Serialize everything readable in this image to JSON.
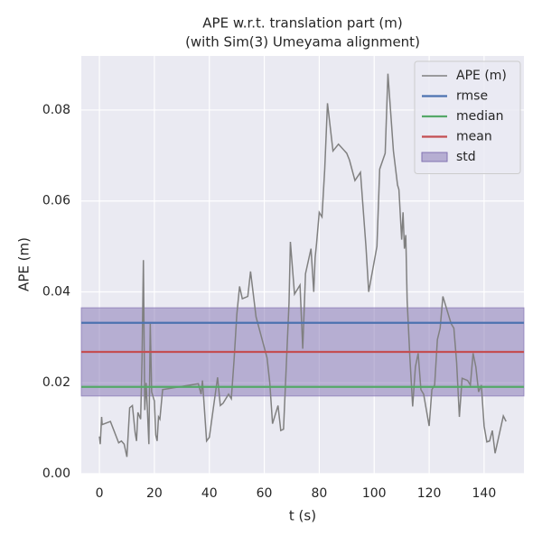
{
  "chart_data": {
    "type": "line",
    "title": "APE w.r.t. translation part (m)",
    "subtitle": "(with Sim(3) Umeyama alignment)",
    "xlabel": "t (s)",
    "ylabel": "APE (m)",
    "xlim": [
      -6.6,
      154.5
    ],
    "ylim": [
      0,
      0.0919
    ],
    "xticks": [
      0,
      20,
      40,
      60,
      80,
      100,
      120,
      140
    ],
    "yticks": [
      {
        "value": 0,
        "label": "0.00"
      },
      {
        "value": 0.02,
        "label": "0.02"
      },
      {
        "value": 0.04,
        "label": "0.04"
      },
      {
        "value": 0.06,
        "label": "0.06"
      },
      {
        "value": 0.08,
        "label": "0.08"
      }
    ],
    "grid": true,
    "legend": "upper right",
    "x": [
      0,
      0.3,
      0.8,
      1,
      4,
      7,
      8,
      9,
      10,
      11,
      12,
      13,
      13.5,
      14,
      15,
      15.5,
      16,
      16.5,
      17,
      17.5,
      18,
      18.5,
      19,
      20,
      20.5,
      21,
      21.5,
      22,
      23,
      36,
      37,
      37.5,
      39,
      40,
      43,
      44,
      45,
      47,
      48,
      49,
      50,
      51,
      52,
      54,
      55,
      57,
      61,
      62,
      63,
      65,
      66,
      67,
      69,
      69.5,
      71,
      73,
      74,
      75,
      77,
      78,
      78.5,
      79,
      80,
      81,
      82,
      83,
      85,
      87,
      90,
      91,
      93,
      95,
      97,
      98,
      101,
      102,
      104,
      105,
      107,
      108.5,
      109,
      110,
      110.5,
      111,
      111.5,
      112,
      113,
      114,
      115,
      116,
      117,
      118,
      120,
      121,
      122,
      123,
      124,
      125,
      128,
      129,
      130,
      131,
      132,
      134,
      135,
      136,
      137,
      138,
      139,
      140,
      141,
      142,
      143,
      144,
      147,
      148
    ],
    "series": [
      {
        "name": "APE (m)",
        "color": "#808080",
        "values": [
          0.0082,
          0.0065,
          0.0125,
          0.0108,
          0.0115,
          0.0068,
          0.0072,
          0.0065,
          0.0037,
          0.0145,
          0.015,
          0.009,
          0.0072,
          0.0135,
          0.012,
          0.025,
          0.047,
          0.014,
          0.02,
          0.0135,
          0.0065,
          0.033,
          0.018,
          0.016,
          0.0085,
          0.0072,
          0.0125,
          0.012,
          0.0185,
          0.0198,
          0.0175,
          0.0205,
          0.0072,
          0.008,
          0.0212,
          0.015,
          0.0155,
          0.0175,
          0.0165,
          0.025,
          0.035,
          0.0412,
          0.0385,
          0.039,
          0.0445,
          0.0345,
          0.0255,
          0.02,
          0.011,
          0.015,
          0.0095,
          0.0098,
          0.0375,
          0.051,
          0.0395,
          0.0415,
          0.0275,
          0.044,
          0.0495,
          0.04,
          0.0475,
          0.0505,
          0.0575,
          0.0565,
          0.067,
          0.0815,
          0.071,
          0.0725,
          0.0705,
          0.069,
          0.0645,
          0.0663,
          0.05,
          0.04,
          0.05,
          0.067,
          0.0705,
          0.088,
          0.071,
          0.0635,
          0.0625,
          0.0515,
          0.0575,
          0.0495,
          0.0525,
          0.038,
          0.0255,
          0.0148,
          0.0235,
          0.0265,
          0.0185,
          0.0175,
          0.0105,
          0.0185,
          0.0195,
          0.0295,
          0.032,
          0.039,
          0.033,
          0.032,
          0.0245,
          0.0125,
          0.021,
          0.0205,
          0.0195,
          0.0265,
          0.0235,
          0.018,
          0.0195,
          0.0105,
          0.007,
          0.0072,
          0.0095,
          0.0045,
          0.0127,
          0.0115
        ]
      }
    ],
    "stats": [
      {
        "name": "rmse",
        "color": "#4c72b0",
        "value": 0.0332
      },
      {
        "name": "median",
        "color": "#55a868",
        "value": 0.0191
      },
      {
        "name": "mean",
        "color": "#c44e52",
        "value": 0.0268
      }
    ],
    "std": {
      "name": "std",
      "color": "#8172b2",
      "value": 0.0097
    }
  }
}
